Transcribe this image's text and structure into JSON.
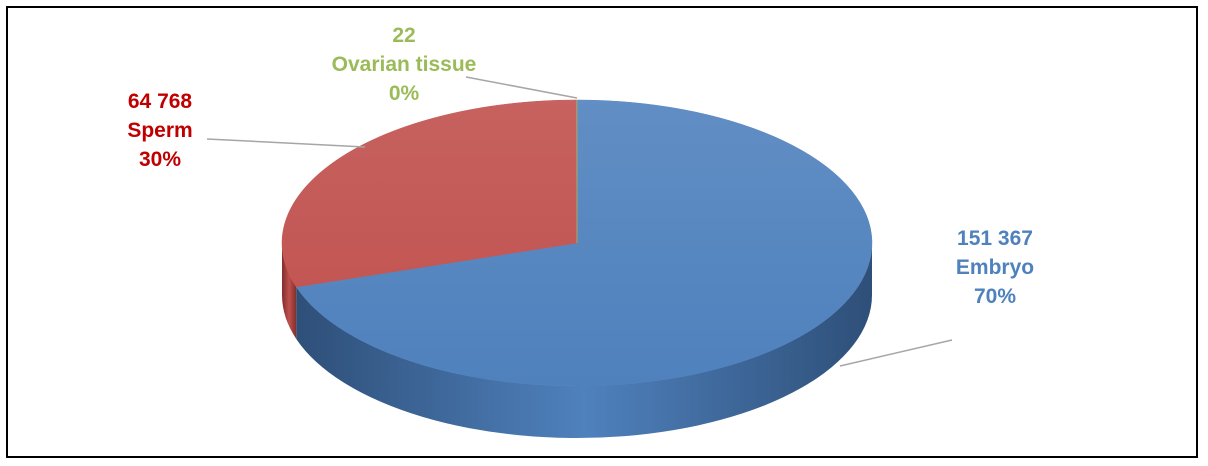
{
  "chart_data": {
    "type": "pie",
    "title": "",
    "legend": "none",
    "unit_note": "",
    "slices": [
      {
        "name": "Embryo",
        "value": 151367,
        "value_label": "151 367",
        "percent_label": "70%",
        "color": "#4f81bd",
        "side_color": "#2e4f78",
        "label_color": "#4f81bd"
      },
      {
        "name": "Sperm",
        "value": 64768,
        "value_label": "64 768",
        "percent_label": "30%",
        "color": "#c0504d",
        "side_color": "#7f2f2d",
        "label_color": "#c00000"
      },
      {
        "name": "Ovarian tissue",
        "value": 22,
        "value_label": "22",
        "percent_label": "0%",
        "color": "#9bbb59",
        "side_color": "#6b8a35",
        "label_color": "#9bbb59"
      }
    ]
  }
}
